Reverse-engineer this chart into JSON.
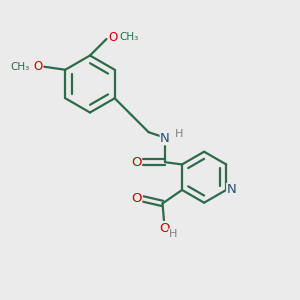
{
  "bg_color": "#ebebeb",
  "bond_color": "#2d6b4a",
  "bond_width": 1.6,
  "atom_colors": {
    "O": "#cc0000",
    "N": "#1a5276",
    "H": "#808080"
  },
  "font_size": 8.5,
  "fig_size": [
    3.0,
    3.0
  ],
  "dpi": 100,
  "xlim": [
    0,
    10
  ],
  "ylim": [
    0,
    10
  ]
}
